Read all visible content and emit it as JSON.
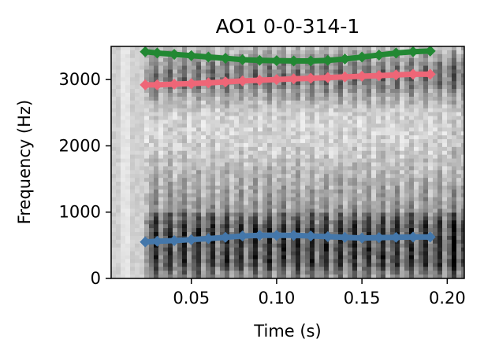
{
  "chart_data": {
    "type": "line",
    "title": "AO1 0-0-314-1",
    "xlabel": "Time (s)",
    "ylabel": "Frequency (Hz)",
    "xlim": [
      0.003,
      0.21
    ],
    "ylim": [
      0,
      3500
    ],
    "x_ticks": [
      0.05,
      0.1,
      0.15,
      0.2
    ],
    "x_tick_labels": [
      "0.05",
      "0.10",
      "0.15",
      "0.20"
    ],
    "y_ticks": [
      0,
      1000,
      2000,
      3000
    ],
    "y_tick_labels": [
      "0",
      "1000",
      "2000",
      "3000"
    ],
    "grid": false,
    "legend": "none",
    "background": "grayscale spectrogram",
    "series": [
      {
        "color": "#4477aa",
        "x": [
          0.023,
          0.03,
          0.04,
          0.05,
          0.06,
          0.07,
          0.08,
          0.09,
          0.1,
          0.11,
          0.12,
          0.13,
          0.14,
          0.15,
          0.16,
          0.17,
          0.18,
          0.19
        ],
        "values": [
          550,
          560,
          570,
          585,
          600,
          620,
          640,
          650,
          650,
          650,
          640,
          630,
          620,
          610,
          615,
          620,
          625,
          625
        ]
      },
      {
        "color": "#ee6677",
        "x": [
          0.023,
          0.03,
          0.04,
          0.05,
          0.06,
          0.07,
          0.08,
          0.09,
          0.1,
          0.11,
          0.12,
          0.13,
          0.14,
          0.15,
          0.16,
          0.17,
          0.18,
          0.19
        ],
        "values": [
          2920,
          2920,
          2930,
          2940,
          2950,
          2965,
          2980,
          2990,
          3000,
          3010,
          3020,
          3030,
          3040,
          3050,
          3060,
          3070,
          3080,
          3080
        ]
      },
      {
        "color": "#228833",
        "x": [
          0.023,
          0.03,
          0.04,
          0.05,
          0.06,
          0.07,
          0.08,
          0.09,
          0.1,
          0.11,
          0.12,
          0.13,
          0.14,
          0.15,
          0.16,
          0.17,
          0.18,
          0.19
        ],
        "values": [
          3420,
          3400,
          3380,
          3360,
          3340,
          3320,
          3300,
          3290,
          3285,
          3280,
          3280,
          3290,
          3310,
          3340,
          3370,
          3400,
          3420,
          3430
        ]
      }
    ]
  }
}
